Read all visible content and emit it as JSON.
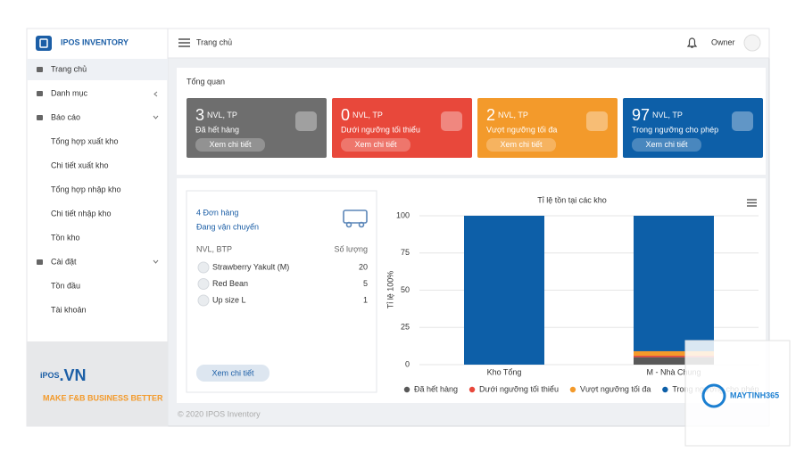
{
  "header": {
    "brand": "IPOS INVENTORY",
    "title": "Trang chủ",
    "user": "Owner"
  },
  "sidebar": {
    "menu": [
      {
        "label": "Trang chủ",
        "children": []
      },
      {
        "label": "Danh mục",
        "children": []
      },
      {
        "label": "Báo cáo",
        "children": [
          "Tổng hợp xuất kho",
          "Chi tiết xuất kho",
          "Tổng hợp nhập kho",
          "Chi tiết nhập kho",
          "Tồn kho"
        ]
      },
      {
        "label": "Cài đặt",
        "children": [
          "Tồn đầu",
          "Tài khoản"
        ]
      }
    ],
    "logo_main": "iPOS",
    "logo_suffix": ".VN",
    "tagline": "MAKE F&B BUSINESS BETTER"
  },
  "content": {
    "section_title": "Tổng quan",
    "cards": [
      {
        "number": 3,
        "unit": "NVL, TP",
        "label": "Đã hết hàng",
        "button": "Xem chi tiết",
        "color": "#6e6e6e"
      },
      {
        "number": 0,
        "unit": "NVL, TP",
        "label": "Dưới ngưỡng tối thiểu",
        "button": "Xem chi tiết",
        "color": "#e8483b"
      },
      {
        "number": 2,
        "unit": "NVL, TP",
        "label": "Vượt ngưỡng tối đa",
        "button": "Xem chi tiết",
        "color": "#f39a2b"
      },
      {
        "number": 97,
        "unit": "NVL, TP",
        "label": "Trong ngưỡng cho phép",
        "button": "Xem chi tiết",
        "color": "#0d5fa8"
      }
    ],
    "orders": {
      "count": "4 Đơn hàng",
      "status": "Đang vận chuyển",
      "col_name": "NVL, BTP",
      "col_qty": "Số lượng",
      "rows": [
        {
          "name": "Strawberry Yakult (M)",
          "qty": 20
        },
        {
          "name": "Red Bean",
          "qty": 5
        },
        {
          "name": "Up size L",
          "qty": 1
        }
      ],
      "button": "Xem chi tiết"
    },
    "footer": "© 2020 IPOS Inventory"
  },
  "chart_data": {
    "type": "bar",
    "stacked": true,
    "title": "Tỉ lệ tồn tại các kho",
    "y_label": "Tỉ lệ 100%",
    "categories": [
      "Kho Tổng",
      "M - Nhà Chung"
    ],
    "series": [
      {
        "name": "Đã hết hàng",
        "color": "#595959",
        "values": [
          0,
          5
        ]
      },
      {
        "name": "Dưới ngưỡng tối thiểu",
        "color": "#e8483b",
        "values": [
          0,
          1
        ]
      },
      {
        "name": "Vượt ngưỡng tối đa",
        "color": "#f39a2b",
        "values": [
          0,
          3
        ]
      },
      {
        "name": "Trong ngưỡng cho phép",
        "color": "#0d5fa8",
        "values": [
          100,
          91
        ]
      }
    ],
    "ylim": [
      0,
      100
    ],
    "yticks": [
      0,
      25,
      50,
      75,
      100
    ],
    "grid": true
  },
  "watermark": "MAYTINH365"
}
